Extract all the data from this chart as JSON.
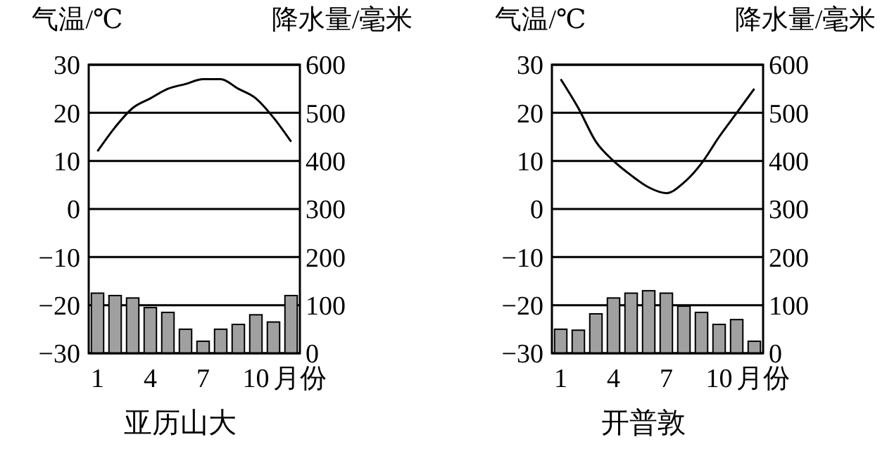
{
  "chart_data": [
    {
      "type": "bar",
      "title": "亚历山大",
      "ylabel": "气温/℃",
      "y2label": "降水量/毫米",
      "xlabel": "月份",
      "categories": [
        "1",
        null,
        null,
        "4",
        null,
        null,
        "7",
        null,
        null,
        "10",
        null,
        null
      ],
      "ylim": [
        -30,
        30
      ],
      "yticks": [
        -30,
        -20,
        -10,
        0,
        10,
        20,
        30
      ],
      "y2lim": [
        0,
        600
      ],
      "y2ticks": [
        0,
        100,
        200,
        300,
        400,
        500,
        600
      ],
      "grid": "y",
      "series": [
        {
          "axis": "y2",
          "color": "#a0a0a0",
          "values": [
            125,
            120,
            115,
            95,
            85,
            50,
            25,
            50,
            60,
            80,
            65,
            120
          ]
        },
        {
          "type": "line",
          "axis": "y",
          "color": "#000000",
          "values": [
            12,
            17,
            21,
            23,
            25,
            26,
            27,
            27,
            25,
            23,
            19,
            14
          ]
        }
      ]
    },
    {
      "type": "bar",
      "title": "开普敦",
      "ylabel": "气温/℃",
      "y2label": "降水量/毫米",
      "xlabel": "月份",
      "categories": [
        "1",
        null,
        null,
        "4",
        null,
        null,
        "7",
        null,
        null,
        "10",
        null,
        null
      ],
      "ylim": [
        -30,
        30
      ],
      "yticks": [
        -30,
        -20,
        -10,
        0,
        10,
        20,
        30
      ],
      "y2lim": [
        0,
        600
      ],
      "y2ticks": [
        0,
        100,
        200,
        300,
        400,
        500,
        600
      ],
      "grid": "y",
      "series": [
        {
          "axis": "y2",
          "color": "#a0a0a0",
          "values": [
            50,
            48,
            82,
            115,
            125,
            130,
            125,
            98,
            85,
            60,
            70,
            25
          ]
        },
        {
          "type": "line",
          "axis": "y",
          "color": "#000000",
          "values": [
            27,
            21,
            14,
            10,
            7,
            4.5,
            3.3,
            5.5,
            9.5,
            15,
            20,
            25
          ]
        }
      ]
    }
  ]
}
